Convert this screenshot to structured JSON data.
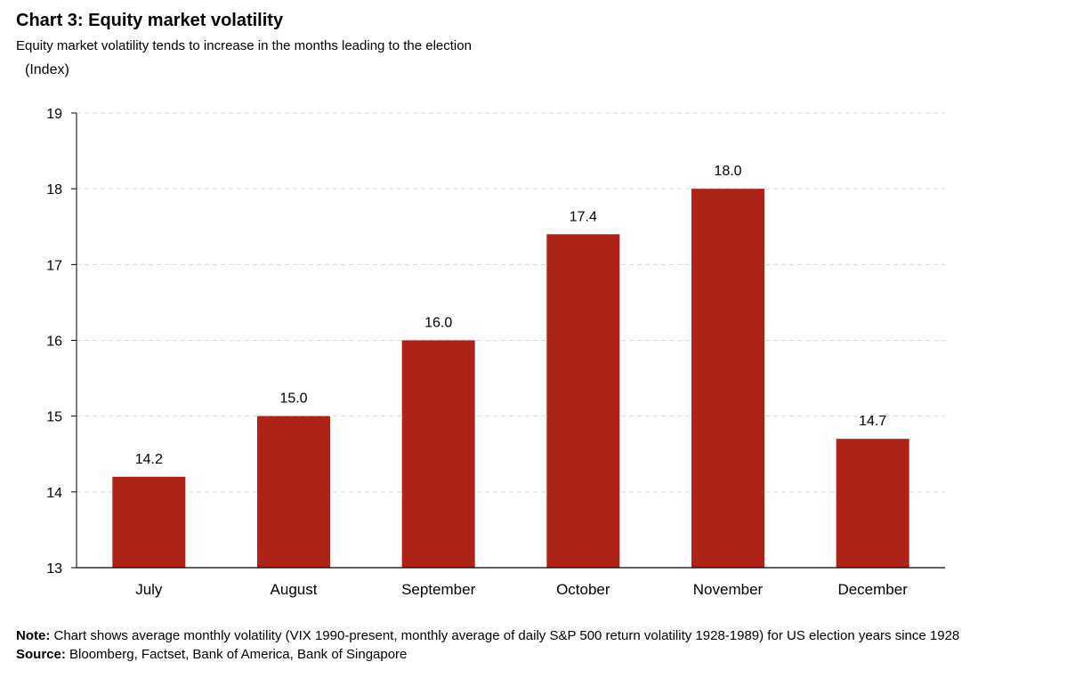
{
  "header": {
    "title": "Chart 3: Equity market volatility",
    "subtitle": "Equity market volatility tends to increase in the months leading to the election",
    "unit": "(Index)"
  },
  "footer": {
    "note_label": "Note:",
    "note_text": "Chart shows average monthly volatility (VIX 1990-present, monthly average of daily S&P 500 return volatility 1928-1989) for US election years since 1928",
    "source_label": "Source:",
    "source_text": "Bloomberg, Factset, Bank of America, Bank of Singapore"
  },
  "colors": {
    "bar": "#AE2318",
    "axis": "#000000",
    "grid": "#D9D9D9",
    "text": "#000000"
  },
  "chart_data": {
    "type": "bar",
    "title": "Chart 3: Equity market volatility",
    "subtitle": "Equity market volatility tends to increase in the months leading to the election",
    "ylabel": "(Index)",
    "xlabel": "",
    "categories": [
      "July",
      "August",
      "September",
      "October",
      "November",
      "December"
    ],
    "values": [
      14.2,
      15.0,
      16.0,
      17.4,
      18.0,
      14.7
    ],
    "data_labels": [
      "14.2",
      "15.0",
      "16.0",
      "17.4",
      "18.0",
      "14.7"
    ],
    "ylim": [
      13,
      19
    ],
    "yticks": [
      13,
      14,
      15,
      16,
      17,
      18,
      19
    ],
    "grid": true,
    "grid_style": "dashed",
    "legend": "none"
  }
}
